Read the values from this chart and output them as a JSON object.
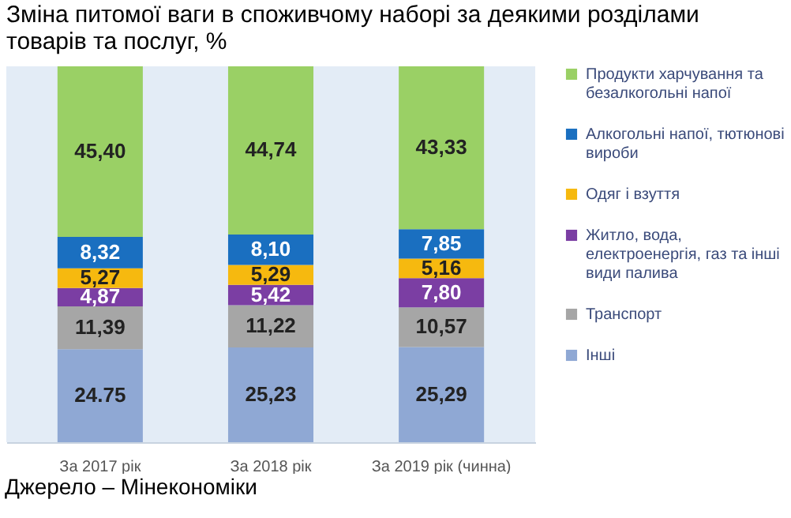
{
  "chart_data": {
    "type": "bar",
    "stacked": true,
    "title": "Зміна питомої ваги в споживчому наборі за деякими розділами товарів та послуг, %",
    "categories": [
      "За 2017 рік",
      "За 2018 рік",
      "За 2019 рік (чинна)"
    ],
    "series": [
      {
        "name": "Інші",
        "color": "#8fa8d4",
        "values": [
          24.75,
          25.23,
          25.29
        ],
        "value_labels": [
          "24.75",
          "25,23",
          "25,29"
        ]
      },
      {
        "name": "Транспорт",
        "color": "#a6a6a6",
        "values": [
          11.39,
          11.22,
          10.57
        ],
        "value_labels": [
          "11,39",
          "11,22",
          "10,57"
        ]
      },
      {
        "name": "Житло, вода, електроенергія, газ та інші види палива",
        "color": "#7b3ea3",
        "values": [
          4.87,
          5.42,
          7.8
        ],
        "value_labels": [
          "4,87",
          "5,42",
          "7,80"
        ]
      },
      {
        "name": "Одяг і взуття",
        "color": "#f6b90f",
        "values": [
          5.27,
          5.29,
          5.16
        ],
        "value_labels": [
          "5,27",
          "5,29",
          "5,16"
        ]
      },
      {
        "name": "Алкогольні напої, тютюнові вироби",
        "color": "#1a6fc0",
        "values": [
          8.32,
          8.1,
          7.85
        ],
        "value_labels": [
          "8,32",
          "8,10",
          "7,85"
        ]
      },
      {
        "name": "Продукти харчування та безалкогольні напої",
        "color": "#9ad065",
        "values": [
          45.4,
          44.74,
          43.33
        ],
        "value_labels": [
          "45,40",
          "44,74",
          "43,33"
        ]
      }
    ],
    "legend": "right",
    "grid": false,
    "annotations": [
      "Джерело – Мінекономіки"
    ]
  }
}
